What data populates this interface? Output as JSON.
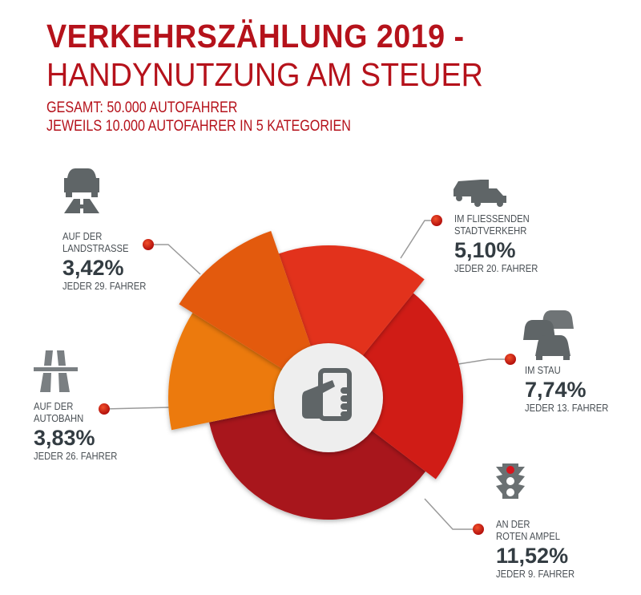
{
  "header": {
    "title": "VERKEHRSZÄHLUNG 2019 -",
    "subtitle": "HANDYNUTZUNG AM STEUER",
    "note1": "GESAMT: 50.000 AUTOFAHRER",
    "note2": "JEWEILS 10.000 AUTOFAHRER IN 5 KATEGORIEN"
  },
  "chart_data": {
    "type": "pie",
    "title": "VERKEHRSZÄHLUNG 2019 - HANDYNUTZUNG AM STEUER",
    "center_icon": "hand-holding-phone-icon",
    "slices": [
      {
        "line1": "AUF DER",
        "line2": "LANDSTRASSE",
        "value": 3.42,
        "label": "3,42%",
        "every": "JEDER 29. FAHRER",
        "icon": "car-on-road-icon",
        "color": "#e35a10"
      },
      {
        "line1": "IM FLIESSENDEN",
        "line2": "STADTVERKEHR",
        "value": 5.1,
        "label": "5,10%",
        "every": "JEDER 20. FAHRER",
        "icon": "van-and-car-icon",
        "color": "#e2321c"
      },
      {
        "line1": "IM STAU",
        "line2": "",
        "value": 7.74,
        "label": "7,74%",
        "every": "JEDER 13. FAHRER",
        "icon": "traffic-jam-icon",
        "color": "#d01a14"
      },
      {
        "line1": "AN DER",
        "line2": "ROTEN AMPEL",
        "value": 11.52,
        "label": "11,52%",
        "every": "JEDER 9. FAHRER",
        "icon": "traffic-light-icon",
        "color": "#a8151a"
      },
      {
        "line1": "AUF DER",
        "line2": "AUTOBAHN",
        "value": 3.83,
        "label": "3,83%",
        "every": "JEDER 26. FAHRER",
        "icon": "autobahn-icon",
        "color": "#ec7a0c"
      }
    ]
  }
}
